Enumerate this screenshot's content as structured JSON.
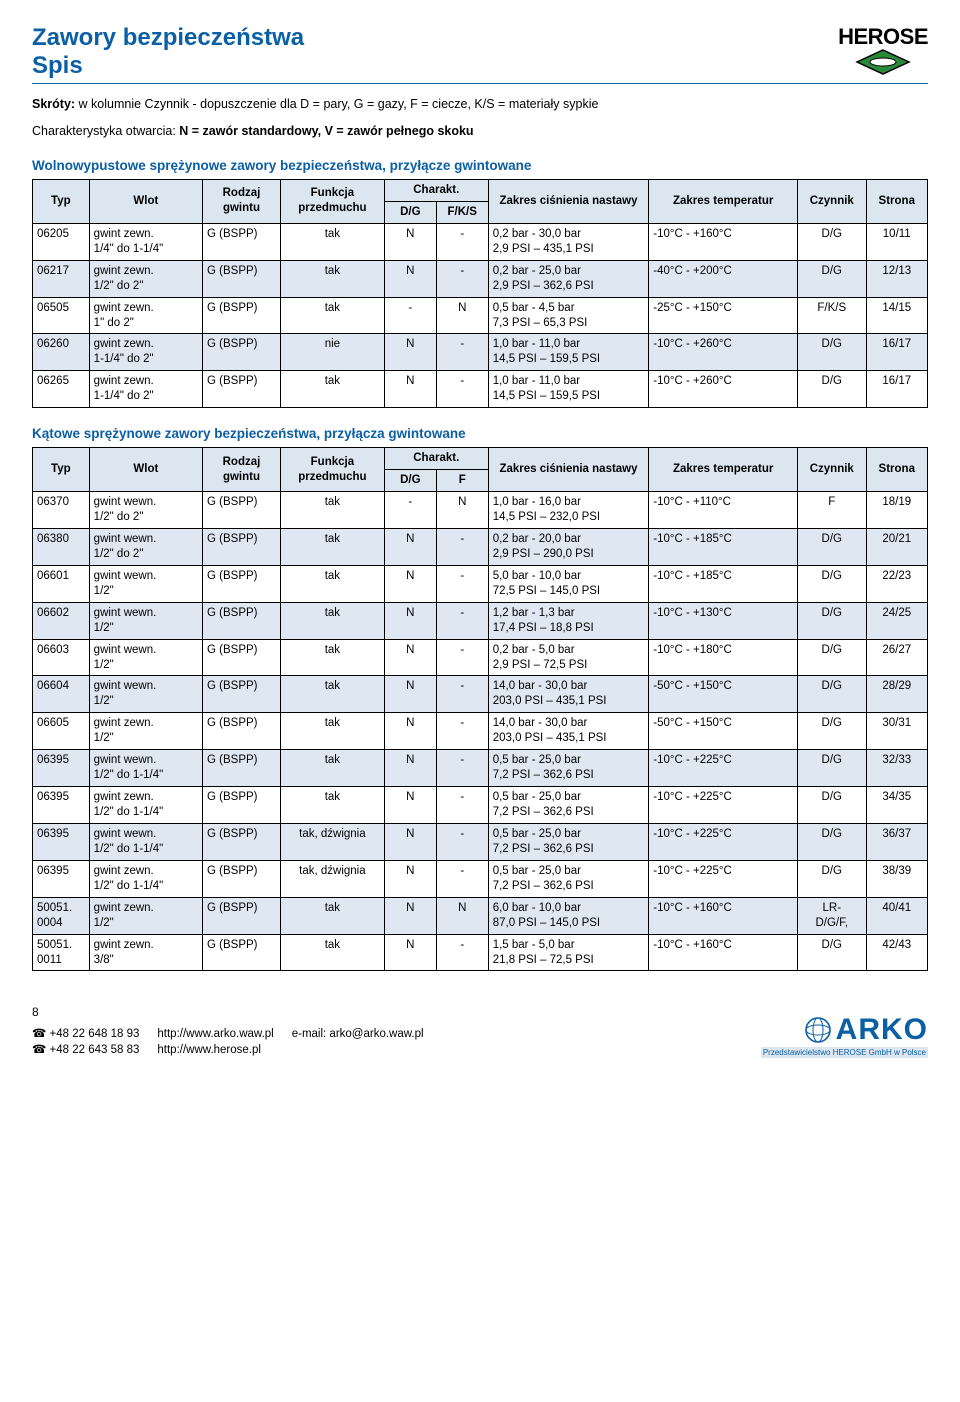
{
  "brand": "HEROSE",
  "header": {
    "title": "Zawory bezpieczeństwa",
    "subtitle": "Spis"
  },
  "intro": {
    "line1_pre": "Skróty:",
    "line1": " w kolumnie Czynnik - dopuszczenie dla D = pary, G = gazy, F = ciecze, K/S = materiały sypkie",
    "line2_pre": "Charakterystyka otwarcia:",
    "line2": " N = zawór standardowy, V = zawór pełnego skoku"
  },
  "section1_title": "Wolnowypustowe sprężynowe zawory bezpieczeństwa, przyłącze gwintowane",
  "section2_title": "Kątowe sprężynowe zawory bezpieczeństwa, przyłącza gwintowane",
  "headers": {
    "typ": "Typ",
    "wlot": "Wlot",
    "rodzaj": "Rodzaj gwintu",
    "funkcja": "Funkcja przedmuchu",
    "charakt": "Charakt.",
    "dg": "D/G",
    "fks": "F/K/S",
    "f": "F",
    "zakres_cis": "Zakres ciśnienia nastawy",
    "zakres_temp": "Zakres temperatur",
    "czynnik": "Czynnik",
    "strona": "Strona"
  },
  "table1": {
    "rows": [
      {
        "typ": "06205",
        "wlot": "gwint zewn.\n1/4\" do 1-1/4\"",
        "rodzaj": "G (BSPP)",
        "funkcja": "tak",
        "dg": "N",
        "fks": "-",
        "cis": "0,2 bar - 30,0 bar\n2,9 PSI – 435,1 PSI",
        "temp": "-10°C - +160°C",
        "czyn": "D/G",
        "str": "10/11"
      },
      {
        "typ": "06217",
        "wlot": "gwint zewn.\n1/2\" do 2\"",
        "rodzaj": "G (BSPP)",
        "funkcja": "tak",
        "dg": "N",
        "fks": "-",
        "cis": "0,2 bar - 25,0 bar\n2,9 PSI – 362,6 PSI",
        "temp": "-40°C - +200°C",
        "czyn": "D/G",
        "str": "12/13",
        "shade": true
      },
      {
        "typ": "06505",
        "wlot": "gwint zewn.\n1\" do 2\"",
        "rodzaj": "G (BSPP)",
        "funkcja": "tak",
        "dg": "-",
        "fks": "N",
        "cis": "0,5 bar - 4,5 bar\n7,3 PSI – 65,3 PSI",
        "temp": "-25°C - +150°C",
        "czyn": "F/K/S",
        "str": "14/15"
      },
      {
        "typ": "06260",
        "wlot": "gwint zewn.\n1-1/4\" do 2\"",
        "rodzaj": "G (BSPP)",
        "funkcja": "nie",
        "dg": "N",
        "fks": "-",
        "cis": "1,0 bar - 11,0 bar\n14,5 PSI – 159,5 PSI",
        "temp": "-10°C - +260°C",
        "czyn": "D/G",
        "str": "16/17",
        "shade": true
      },
      {
        "typ": "06265",
        "wlot": "gwint zewn.\n1-1/4\" do 2\"",
        "rodzaj": "G (BSPP)",
        "funkcja": "tak",
        "dg": "N",
        "fks": "-",
        "cis": "1,0 bar - 11,0 bar\n14,5 PSI – 159,5 PSI",
        "temp": "-10°C - +260°C",
        "czyn": "D/G",
        "str": "16/17"
      }
    ]
  },
  "table2": {
    "rows": [
      {
        "typ": "06370",
        "wlot": "gwint wewn.\n1/2\" do 2\"",
        "rodzaj": "G (BSPP)",
        "funkcja": "tak",
        "dg": "-",
        "fks": "N",
        "cis": "1,0 bar - 16,0 bar\n14,5 PSI – 232,0 PSI",
        "temp": "-10°C - +110°C",
        "czyn": "F",
        "str": "18/19"
      },
      {
        "typ": "06380",
        "wlot": "gwint wewn.\n1/2\" do 2\"",
        "rodzaj": "G (BSPP)",
        "funkcja": "tak",
        "dg": "N",
        "fks": "-",
        "cis": "0,2 bar - 20,0 bar\n2,9 PSI – 290,0 PSI",
        "temp": "-10°C - +185°C",
        "czyn": "D/G",
        "str": "20/21",
        "shade": true
      },
      {
        "typ": "06601",
        "wlot": "gwint wewn.\n1/2\"",
        "rodzaj": "G (BSPP)",
        "funkcja": "tak",
        "dg": "N",
        "fks": "-",
        "cis": "5,0 bar - 10,0 bar\n72,5 PSI – 145,0 PSI",
        "temp": "-10°C - +185°C",
        "czyn": "D/G",
        "str": "22/23"
      },
      {
        "typ": "06602",
        "wlot": "gwint wewn.\n1/2\"",
        "rodzaj": "G (BSPP)",
        "funkcja": "tak",
        "dg": "N",
        "fks": "-",
        "cis": "1,2 bar - 1,3 bar\n17,4 PSI – 18,8 PSI",
        "temp": "-10°C - +130°C",
        "czyn": "D/G",
        "str": "24/25",
        "shade": true
      },
      {
        "typ": "06603",
        "wlot": "gwint wewn.\n1/2\"",
        "rodzaj": "G (BSPP)",
        "funkcja": "tak",
        "dg": "N",
        "fks": "-",
        "cis": "0,2 bar - 5,0 bar\n2,9 PSI – 72,5 PSI",
        "temp": "-10°C - +180°C",
        "czyn": "D/G",
        "str": "26/27"
      },
      {
        "typ": "06604",
        "wlot": "gwint wewn.\n1/2\"",
        "rodzaj": "G (BSPP)",
        "funkcja": "tak",
        "dg": "N",
        "fks": "-",
        "cis": "14,0 bar - 30,0 bar\n203,0 PSI – 435,1 PSI",
        "temp": "-50°C - +150°C",
        "czyn": "D/G",
        "str": "28/29",
        "shade": true
      },
      {
        "typ": "06605",
        "wlot": "gwint zewn.\n1/2\"",
        "rodzaj": "G (BSPP)",
        "funkcja": "tak",
        "dg": "N",
        "fks": "-",
        "cis": "14,0 bar - 30,0 bar\n203,0 PSI – 435,1 PSI",
        "temp": "-50°C - +150°C",
        "czyn": "D/G",
        "str": "30/31"
      },
      {
        "typ": "06395",
        "wlot": "gwint wewn.\n1/2\" do 1-1/4\"",
        "rodzaj": "G (BSPP)",
        "funkcja": "tak",
        "dg": "N",
        "fks": "-",
        "cis": "0,5 bar - 25,0 bar\n7,2 PSI – 362,6 PSI",
        "temp": "-10°C - +225°C",
        "czyn": "D/G",
        "str": "32/33",
        "shade": true
      },
      {
        "typ": "06395",
        "wlot": "gwint zewn.\n1/2\" do 1-1/4\"",
        "rodzaj": "G (BSPP)",
        "funkcja": "tak",
        "dg": "N",
        "fks": "-",
        "cis": "0,5 bar - 25,0 bar\n7,2 PSI – 362,6 PSI",
        "temp": "-10°C - +225°C",
        "czyn": "D/G",
        "str": "34/35"
      },
      {
        "typ": "06395",
        "wlot": "gwint wewn.\n1/2\" do 1-1/4\"",
        "rodzaj": "G (BSPP)",
        "funkcja": "tak, dźwignia",
        "dg": "N",
        "fks": "-",
        "cis": "0,5 bar - 25,0 bar\n7,2 PSI – 362,6 PSI",
        "temp": "-10°C - +225°C",
        "czyn": "D/G",
        "str": "36/37",
        "shade": true
      },
      {
        "typ": "06395",
        "wlot": "gwint zewn.\n1/2\" do 1-1/4\"",
        "rodzaj": "G (BSPP)",
        "funkcja": "tak, dźwignia",
        "dg": "N",
        "fks": "-",
        "cis": "0,5 bar - 25,0 bar\n7,2 PSI – 362,6 PSI",
        "temp": "-10°C - +225°C",
        "czyn": "D/G",
        "str": "38/39"
      },
      {
        "typ": "50051.\n0004",
        "wlot": "gwint zewn.\n1/2\"",
        "rodzaj": "G (BSPP)",
        "funkcja": "tak",
        "dg": "N",
        "fks": "N",
        "cis": "6,0 bar - 10,0 bar\n87,0 PSI – 145,0 PSI",
        "temp": "-10°C - +160°C",
        "czyn": "LR-\nD/G/F,",
        "str": "40/41",
        "shade": true
      },
      {
        "typ": "50051.\n0011",
        "wlot": "gwint zewn.\n3/8\"",
        "rodzaj": "G (BSPP)",
        "funkcja": "tak",
        "dg": "N",
        "fks": "-",
        "cis": "1,5 bar - 5,0 bar\n21,8 PSI – 72,5 PSI",
        "temp": "-10°C - +160°C",
        "czyn": "D/G",
        "str": "42/43"
      }
    ]
  },
  "footer": {
    "page": "8",
    "phone1": "+48 22 648 18 93",
    "phone2": "+48 22 643 58 83",
    "url1": "http://www.arko.waw.pl",
    "url2": "http://www.herose.pl",
    "email": "e-mail: arko@arko.waw.pl",
    "arko": "ARKO",
    "arko_sub": "Przedstawicielstwo HEROSE GmbH w Polsce"
  },
  "colors": {
    "primary": "#0b5fa5",
    "header_bg": "#dce6f1",
    "row_shade": "#dfe8f2",
    "green": "#2a8a3a"
  }
}
